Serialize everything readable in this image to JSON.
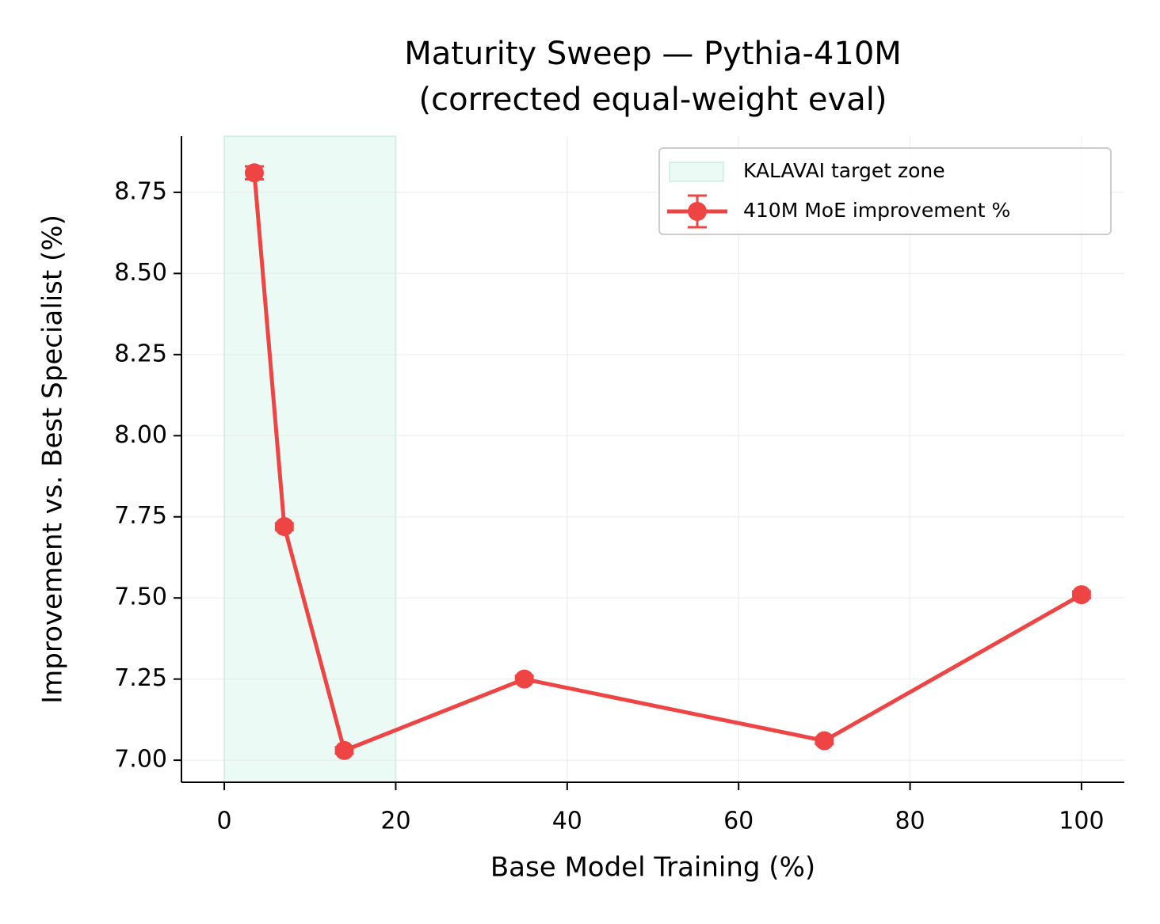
{
  "chart_data": {
    "type": "line",
    "title": [
      "Maturity Sweep — Pythia-410M",
      "(corrected equal-weight eval)"
    ],
    "x_label": "Base Model Training (%)",
    "y_label": "Improvement vs. Best Specialist (%)",
    "x": [
      3.5,
      7,
      14,
      35,
      70,
      100
    ],
    "series": [
      {
        "name": "410M MoE improvement %",
        "color": "#ef4444",
        "values": [
          8.81,
          7.72,
          7.03,
          7.25,
          7.06,
          7.51
        ],
        "errors": [
          0.02,
          0.01,
          0.01,
          0.01,
          0.01,
          0.01
        ]
      }
    ],
    "span": {
      "name": "KALAVAI target zone",
      "range": [
        0,
        20
      ],
      "color": "#10b981"
    },
    "xlim": [
      -5,
      105
    ],
    "xticks": [
      0,
      20,
      40,
      60,
      80,
      100
    ],
    "ylim": [
      6.932,
      8.923
    ],
    "yticks": [
      {
        "value": 7,
        "label": "7.00"
      },
      7.25,
      {
        "value": 7.5,
        "label": "7.50"
      },
      7.75,
      {
        "value": 8,
        "label": "8.00"
      },
      8.25,
      {
        "value": 8.5,
        "label": "8.50"
      },
      8.75
    ],
    "grid": true,
    "legend": "upper right"
  }
}
